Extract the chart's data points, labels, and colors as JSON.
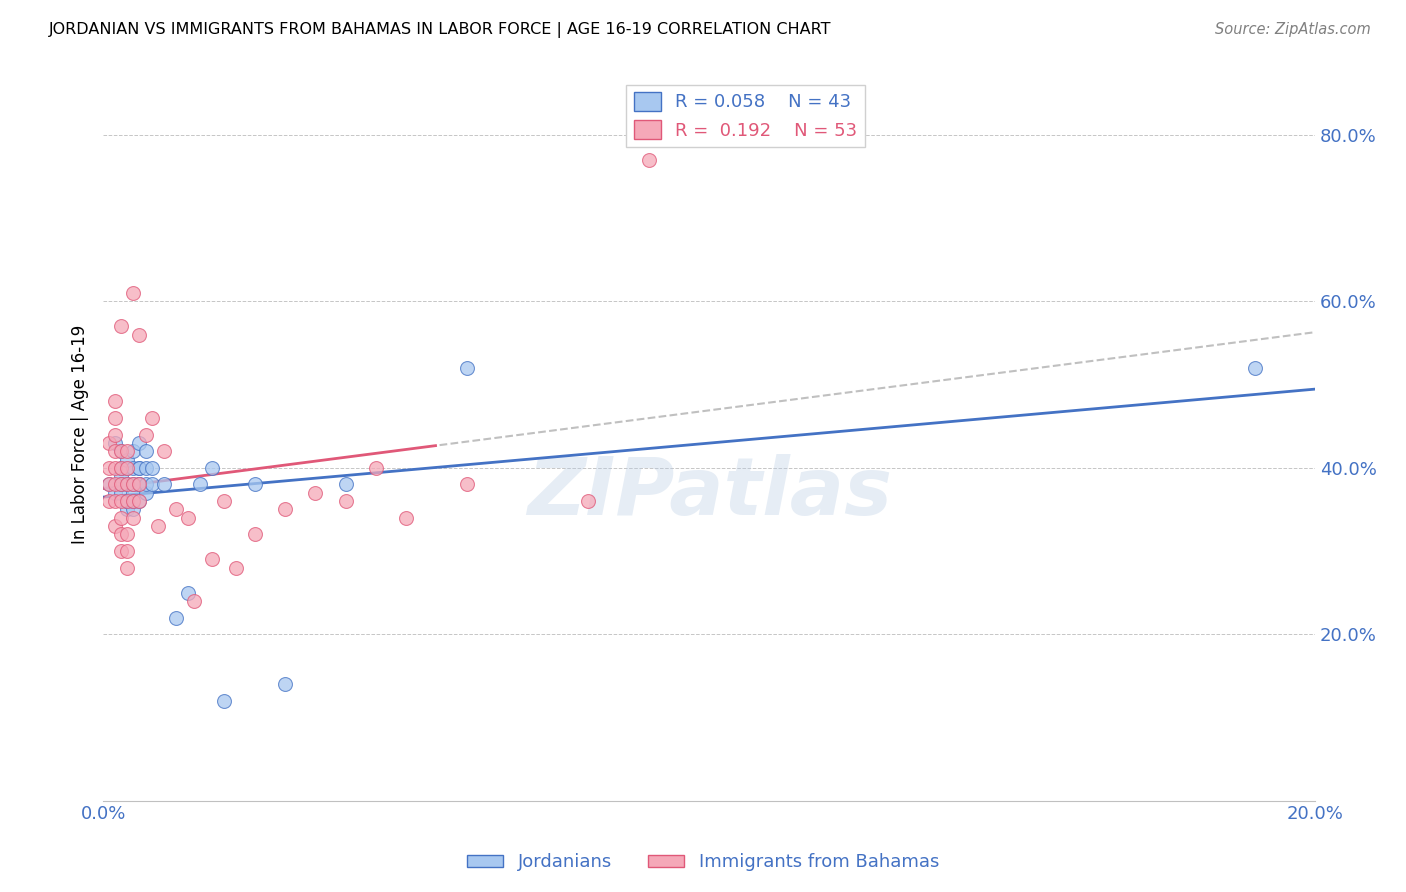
{
  "title": "JORDANIAN VS IMMIGRANTS FROM BAHAMAS IN LABOR FORCE | AGE 16-19 CORRELATION CHART",
  "source": "Source: ZipAtlas.com",
  "ylabel": "In Labor Force | Age 16-19",
  "xlim": [
    0.0,
    0.2
  ],
  "ylim": [
    0.0,
    0.88
  ],
  "yticks": [
    0.2,
    0.4,
    0.6,
    0.8
  ],
  "xticks": [
    0.0,
    0.04,
    0.08,
    0.12,
    0.16,
    0.2
  ],
  "ytick_labels": [
    "20.0%",
    "40.0%",
    "60.0%",
    "80.0%"
  ],
  "legend_r1": "R = 0.058",
  "legend_n1": "N = 43",
  "legend_r2": "R =  0.192",
  "legend_n2": "N = 53",
  "color_jordan": "#A8C8F0",
  "color_bahamas": "#F5A8B8",
  "color_jordan_line": "#4472C4",
  "color_bahamas_line": "#E05878",
  "color_axis_text": "#4472C4",
  "watermark": "ZIPatlas",
  "jordan_x": [
    0.001,
    0.002,
    0.002,
    0.003,
    0.003,
    0.003,
    0.003,
    0.003,
    0.004,
    0.004,
    0.004,
    0.004,
    0.004,
    0.004,
    0.005,
    0.005,
    0.005,
    0.005,
    0.005,
    0.005,
    0.006,
    0.006,
    0.006,
    0.006,
    0.006,
    0.006,
    0.007,
    0.007,
    0.007,
    0.007,
    0.008,
    0.008,
    0.01,
    0.012,
    0.014,
    0.016,
    0.018,
    0.02,
    0.025,
    0.03,
    0.04,
    0.06,
    0.19
  ],
  "jordan_y": [
    0.38,
    0.37,
    0.43,
    0.37,
    0.39,
    0.4,
    0.38,
    0.42,
    0.35,
    0.36,
    0.38,
    0.4,
    0.36,
    0.41,
    0.35,
    0.37,
    0.38,
    0.4,
    0.42,
    0.36,
    0.38,
    0.4,
    0.36,
    0.38,
    0.4,
    0.43,
    0.37,
    0.38,
    0.4,
    0.42,
    0.38,
    0.4,
    0.38,
    0.22,
    0.25,
    0.38,
    0.4,
    0.12,
    0.38,
    0.14,
    0.38,
    0.52,
    0.52
  ],
  "bahamas_x": [
    0.001,
    0.001,
    0.001,
    0.001,
    0.002,
    0.002,
    0.002,
    0.002,
    0.002,
    0.002,
    0.002,
    0.002,
    0.003,
    0.003,
    0.003,
    0.003,
    0.003,
    0.003,
    0.003,
    0.003,
    0.004,
    0.004,
    0.004,
    0.004,
    0.004,
    0.004,
    0.004,
    0.005,
    0.005,
    0.005,
    0.005,
    0.006,
    0.006,
    0.006,
    0.007,
    0.008,
    0.009,
    0.01,
    0.012,
    0.014,
    0.015,
    0.018,
    0.02,
    0.022,
    0.025,
    0.03,
    0.035,
    0.04,
    0.045,
    0.05,
    0.06,
    0.08,
    0.09
  ],
  "bahamas_y": [
    0.36,
    0.38,
    0.4,
    0.43,
    0.33,
    0.36,
    0.38,
    0.4,
    0.42,
    0.44,
    0.46,
    0.48,
    0.3,
    0.32,
    0.34,
    0.36,
    0.38,
    0.4,
    0.42,
    0.57,
    0.28,
    0.3,
    0.32,
    0.36,
    0.38,
    0.4,
    0.42,
    0.34,
    0.36,
    0.38,
    0.61,
    0.36,
    0.38,
    0.56,
    0.44,
    0.46,
    0.33,
    0.42,
    0.35,
    0.34,
    0.24,
    0.29,
    0.36,
    0.28,
    0.32,
    0.35,
    0.37,
    0.36,
    0.4,
    0.34,
    0.38,
    0.36,
    0.77
  ]
}
